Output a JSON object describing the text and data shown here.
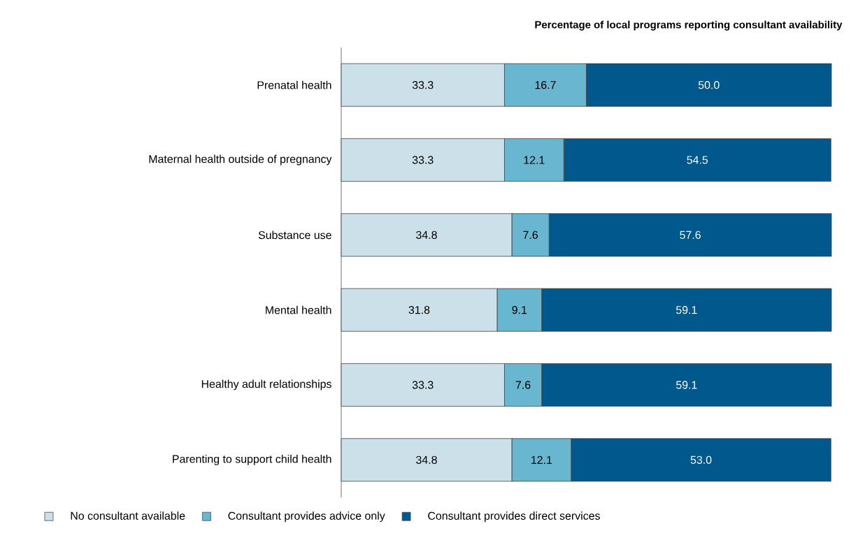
{
  "chart_data": {
    "type": "bar",
    "orientation": "horizontal",
    "stacked": true,
    "legend": "bottom",
    "title": "Percentage of local programs reporting consultant availability",
    "categories": [
      "Prenatal health",
      "Maternal health outside of pregnancy",
      "Substance use",
      "Mental health",
      "Healthy adult relationships",
      "Parenting to support child health"
    ],
    "series": [
      {
        "name": "No consultant available",
        "color": "#cce0ea",
        "values": [
          33.3,
          33.3,
          34.8,
          31.8,
          33.3,
          34.8
        ],
        "value_labels": [
          "33.3",
          "33.3",
          "34.8",
          "31.8",
          "33.3",
          "34.8"
        ]
      },
      {
        "name": "Consultant provides advice only",
        "color": "#68b6d0",
        "values": [
          16.7,
          12.1,
          7.6,
          9.1,
          7.6,
          12.1
        ],
        "value_labels": [
          "16.7",
          "12.1",
          "7.6",
          "9.1",
          "7.6",
          "12.1"
        ]
      },
      {
        "name": "Consultant provides direct services",
        "color": "#00588c",
        "values": [
          50.0,
          54.5,
          57.6,
          59.1,
          59.1,
          53.0
        ],
        "value_labels": [
          "50.0",
          "54.5",
          "57.6",
          "59.1",
          "59.1",
          "53.0"
        ]
      }
    ]
  }
}
